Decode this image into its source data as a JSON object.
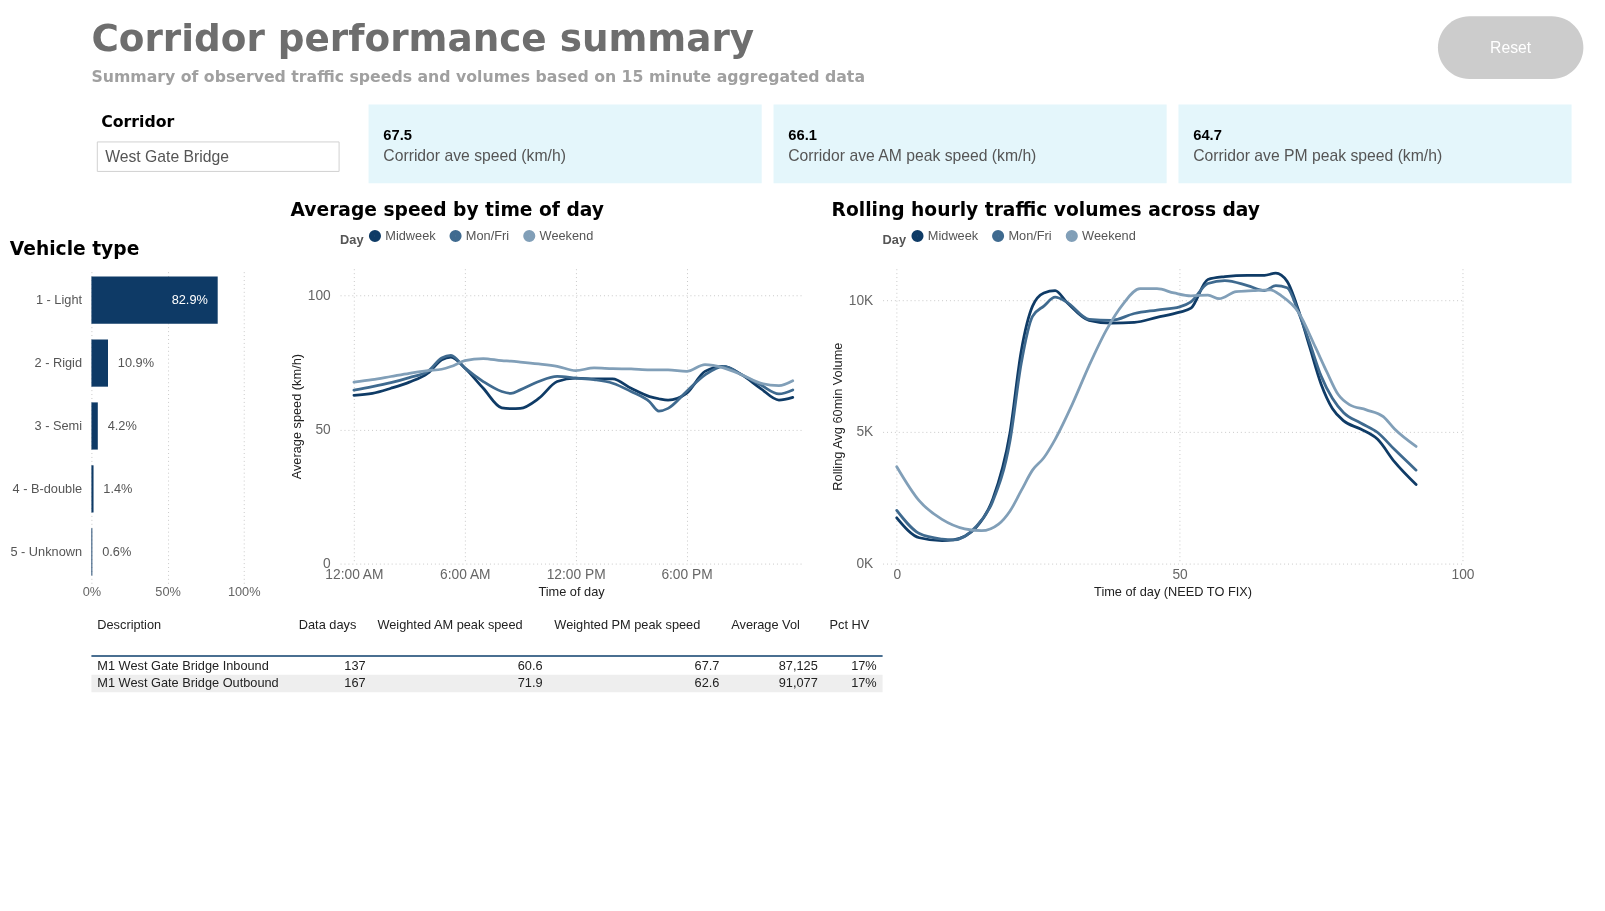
{
  "chart_data": [
    {
      "type": "other",
      "title": "Corridor performance summary",
      "subtitle": "Summary of observed traffic speeds and volumes based on 15 minute aggregated data",
      "annotations": [
        "Reset"
      ]
    },
    {
      "type": "other",
      "title": "Corridor",
      "annotations": [
        "West Gate Bridge"
      ]
    },
    {
      "type": "other",
      "annotations": [
        "67.5",
        "Corridor ave speed (km/h)",
        "66.1",
        "Corridor ave AM peak speed (km/h)",
        "64.7",
        "Corridor ave PM peak speed (km/h)"
      ]
    },
    {
      "type": "bar",
      "title": "Vehicle type",
      "orientation": "horizontal",
      "categories": [
        "1 - Light",
        "2 - Rigid",
        "3 - Semi",
        "4 - B-double",
        "5 - Unknown"
      ],
      "values": [
        82.9,
        10.9,
        4.2,
        1.4,
        0.6
      ],
      "value_labels": [
        "82.9%",
        "10.9%",
        "4.2%",
        "1.4%",
        "0.6%"
      ],
      "color": "#0e3a66",
      "xlim": [
        0,
        100
      ],
      "xticks": [
        {
          "value": 0,
          "label": "0%"
        },
        {
          "value": 50,
          "label": "50%"
        },
        {
          "value": 100,
          "label": "100%"
        }
      ],
      "grid": "x"
    },
    {
      "type": "line",
      "title": "Average speed by time of day",
      "xlabel": "Time of day",
      "ylabel": "Average speed (km/h)",
      "legend_title": "Day",
      "legend": "top left",
      "grid": true,
      "x": [
        0,
        1,
        2,
        3,
        4,
        4.75,
        5.25,
        6,
        7,
        8,
        8.5,
        9,
        10,
        11,
        12,
        13,
        14,
        15,
        16,
        16.5,
        17,
        18,
        19,
        20,
        21,
        22,
        23,
        23.75
      ],
      "xlim": [
        -0.75,
        24.25
      ],
      "xticks": [
        {
          "value": 0,
          "label": "12:00 AM"
        },
        {
          "value": 6,
          "label": "6:00 AM"
        },
        {
          "value": 12,
          "label": "12:00 PM"
        },
        {
          "value": 18,
          "label": "6:00 PM"
        }
      ],
      "ylim": [
        0,
        110
      ],
      "yticks": [
        0,
        50,
        100
      ],
      "series": [
        {
          "name": "Midweek",
          "color": "#0f3b66",
          "values": [
            62.8,
            63.5,
            65.4,
            67.7,
            71,
            76,
            77,
            73,
            65.4,
            58.1,
            57.8,
            57.9,
            61.6,
            67.9,
            69.2,
            68.9,
            68.9,
            65.4,
            62.3,
            61.5,
            61,
            63.5,
            71.7,
            73.6,
            70.4,
            65.4,
            61,
            62
          ]
        },
        {
          "name": "Mon/Fri",
          "color": "#3f6a8f",
          "values": [
            64.7,
            66,
            67.5,
            69.4,
            71.7,
            76.7,
            77.7,
            73,
            67.9,
            64.2,
            63.5,
            64.8,
            67.9,
            69.8,
            69.2,
            68.6,
            67.3,
            64.2,
            60.4,
            56.9,
            57.9,
            64.2,
            70.4,
            73.6,
            70.4,
            66.7,
            63.3,
            64.8
          ]
        },
        {
          "name": "Weekend",
          "color": "#819fb8",
          "values": [
            67.7,
            68.6,
            69.8,
            71,
            72,
            72.5,
            73.5,
            75.7,
            76.5,
            75.7,
            75.5,
            75.2,
            74.5,
            73.6,
            72,
            73,
            72.7,
            72.6,
            72.3,
            72.3,
            72.3,
            71.7,
            74.2,
            73,
            70.4,
            67.3,
            66.4,
            68.2
          ]
        }
      ]
    },
    {
      "type": "line",
      "title": "Rolling hourly traffic volumes across day",
      "xlabel": "Time of day (NEED TO FIX)",
      "ylabel": "Rolling Avg 60min Volume",
      "legend_title": "Day",
      "legend": "top left",
      "grid": true,
      "xlim": [
        -2.5,
        100
      ],
      "xticks": [
        0,
        50,
        100
      ],
      "ylim": [
        0,
        11200
      ],
      "yticks": [
        {
          "value": 0,
          "label": "0K"
        },
        {
          "value": 5000,
          "label": "5K"
        },
        {
          "value": 10000,
          "label": "10K"
        }
      ],
      "series": [
        {
          "name": "Midweek",
          "color": "#0f3b66",
          "x": [
            0,
            4,
            8,
            10,
            14,
            17,
            20,
            22,
            24,
            26,
            28,
            30,
            34,
            38,
            42,
            46,
            50,
            52,
            55,
            58,
            62,
            65,
            67,
            69,
            71,
            73,
            75,
            77,
            79,
            82,
            85,
            88,
            91.8
          ],
          "values": [
            1740,
            980,
            870,
            900,
            1370,
            2460,
            4950,
            8070,
            9780,
            10280,
            10370,
            9940,
            9240,
            9130,
            9160,
            9350,
            9550,
            9700,
            10790,
            10900,
            10950,
            10950,
            11030,
            10720,
            9630,
            8220,
            6820,
            5890,
            5420,
            5110,
            4720,
            3860,
            3000
          ]
        },
        {
          "name": "Mon/Fri",
          "color": "#3f6a8f",
          "x": [
            0,
            4,
            8,
            10,
            14,
            17,
            20,
            22,
            24,
            26,
            28,
            30,
            34,
            38,
            42,
            46,
            50,
            52,
            55,
            58,
            62,
            65,
            67,
            69,
            71,
            73,
            75,
            77,
            79,
            82,
            85,
            88,
            91.8
          ],
          "values": [
            2020,
            1140,
            930,
            900,
            1400,
            2380,
            4640,
            7600,
            9390,
            9780,
            10120,
            9940,
            9280,
            9240,
            9500,
            9630,
            9750,
            9940,
            10640,
            10750,
            10560,
            10370,
            10560,
            10480,
            9550,
            8380,
            7130,
            6280,
            5730,
            5340,
            4980,
            4330,
            3550
          ]
        },
        {
          "name": "Weekend",
          "color": "#819fb8",
          "x": [
            0,
            4,
            8,
            12,
            15,
            18,
            20,
            22,
            24,
            26,
            28,
            31,
            34,
            37,
            40,
            43,
            46,
            49,
            52,
            55,
            57,
            60,
            63,
            66,
            68,
            71,
            74,
            76,
            78,
            80,
            83,
            86,
            88,
            91.8
          ],
          "values": [
            3680,
            2380,
            1680,
            1320,
            1250,
            1500,
            1990,
            2770,
            3550,
            4020,
            4720,
            6040,
            7520,
            8850,
            9860,
            10440,
            10440,
            10280,
            10170,
            10200,
            10060,
            10330,
            10370,
            10400,
            10170,
            9550,
            8220,
            7290,
            6430,
            6040,
            5840,
            5580,
            5110,
            4450
          ]
        }
      ]
    },
    {
      "type": "other",
      "annotations": [
        "Description",
        "Data days",
        "Weighted AM peak speed",
        "Weighted PM peak speed",
        "Average Vol",
        "Pct HV",
        "M1 West Gate Bridge Inbound",
        "137",
        "60.6",
        "67.7",
        "87,125",
        "17%",
        "M1 West Gate Bridge Outbound",
        "167",
        "71.9",
        "62.6",
        "91,077",
        "17%"
      ]
    }
  ]
}
